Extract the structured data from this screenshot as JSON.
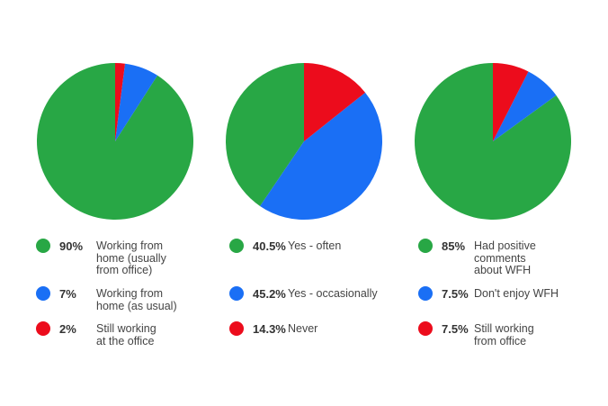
{
  "chart_data": [
    {
      "type": "pie",
      "title": "",
      "slices": [
        {
          "pct_label": "90%",
          "label": "Working from\nhome (usually\nfrom office)",
          "value": 90,
          "color": "#28a745"
        },
        {
          "pct_label": "7%",
          "label": "Working from\nhome (as usual)",
          "value": 7,
          "color": "#1a6ff5"
        },
        {
          "pct_label": "2%",
          "label": "Still working\nat the office",
          "value": 2,
          "color": "#ec0c1c"
        }
      ]
    },
    {
      "type": "pie",
      "title": "",
      "slices": [
        {
          "pct_label": "40.5%",
          "label": "Yes - often",
          "value": 40.5,
          "color": "#28a745"
        },
        {
          "pct_label": "45.2%",
          "label": "Yes - occasionally",
          "value": 45.2,
          "color": "#1a6ff5"
        },
        {
          "pct_label": "14.3%",
          "label": "Never",
          "value": 14.3,
          "color": "#ec0c1c"
        }
      ]
    },
    {
      "type": "pie",
      "title": "",
      "slices": [
        {
          "pct_label": "85%",
          "label": "Had positive\ncomments\nabout WFH",
          "value": 85,
          "color": "#28a745"
        },
        {
          "pct_label": "7.5%",
          "label": "Don't enjoy WFH",
          "value": 7.5,
          "color": "#1a6ff5"
        },
        {
          "pct_label": "7.5%",
          "label": "Still working\nfrom office",
          "value": 7.5,
          "color": "#ec0c1c"
        }
      ]
    }
  ]
}
